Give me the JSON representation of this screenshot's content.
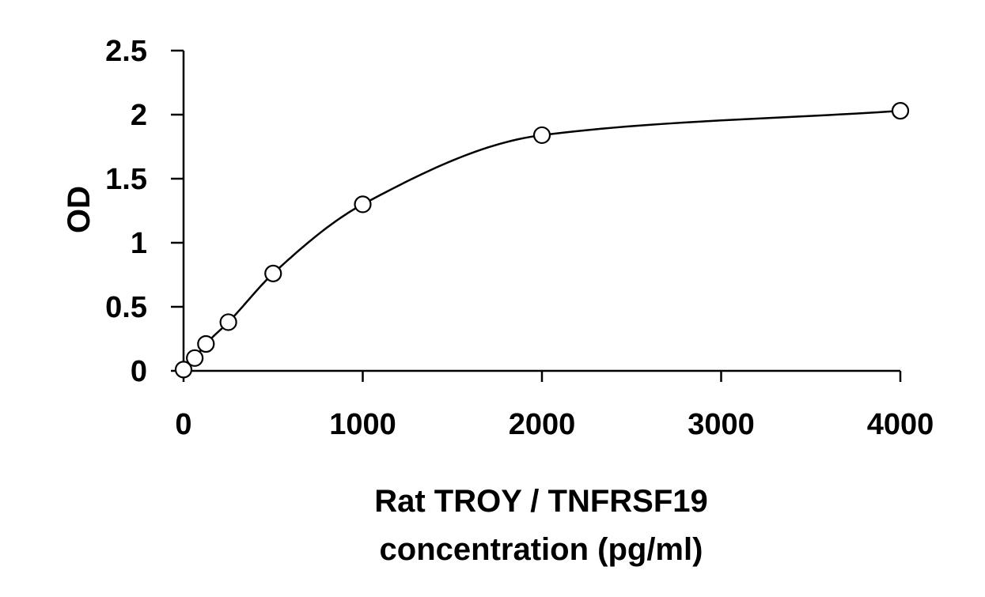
{
  "chart_data": {
    "type": "scatter",
    "title": "",
    "xlabel": [
      "Rat TROY / TNFRSF19",
      "concentration (pg/ml)"
    ],
    "ylabel": "OD",
    "xlim": [
      0,
      4000
    ],
    "ylim": [
      0,
      2.5
    ],
    "xticks": [
      0,
      1000,
      2000,
      3000,
      4000
    ],
    "xtick_labels": [
      "0",
      "1000",
      "2000",
      "3000",
      "4000"
    ],
    "yticks": [
      0,
      0.5,
      1,
      1.5,
      2,
      2.5
    ],
    "ytick_labels": [
      "0",
      "0.5",
      "1",
      "1.5",
      "2",
      "2.5"
    ],
    "grid": false,
    "legend": "none",
    "marker": "open-circle",
    "fit_line": "smooth curve",
    "series": [
      {
        "x": [
          0,
          62.5,
          125,
          250,
          500,
          1000,
          2000,
          4000
        ],
        "y": [
          0.01,
          0.1,
          0.21,
          0.38,
          0.76,
          1.3,
          1.84,
          2.03
        ]
      }
    ],
    "colors": {
      "axis": "#000000",
      "marker_stroke": "#000000",
      "curve": "#000000"
    }
  }
}
